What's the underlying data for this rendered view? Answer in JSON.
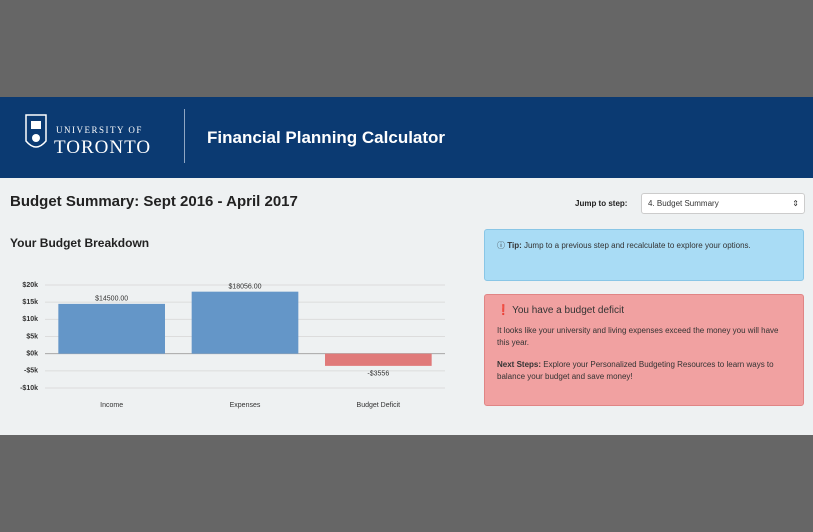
{
  "header": {
    "logo_top": "UNIVERSITY OF",
    "logo_bottom": "TORONTO",
    "app_title": "Financial Planning Calculator"
  },
  "page_title": "Budget Summary: Sept 2016 - April 2017",
  "jump": {
    "label": "Jump to step:",
    "selected": "4. Budget Summary"
  },
  "section_title": "Your Budget Breakdown",
  "tip": {
    "label": "Tip:",
    "text": "Jump to a previous step and recalculate to explore your options."
  },
  "alert": {
    "title": "You have a budget deficit",
    "body": "It looks like your university and living expenses exceed the money you will have this year.",
    "next_label": "Next Steps:",
    "next_text": "Explore your Personalized Budgeting Resources to learn ways to balance your budget and save money!"
  },
  "chart_data": {
    "type": "bar",
    "categories": [
      "Income",
      "Expenses",
      "Budget Deficit"
    ],
    "values": [
      14500,
      18056,
      -3556
    ],
    "value_labels": [
      "$14500.00",
      "$18056.00",
      "-$3556"
    ],
    "colors": [
      "#6496c8",
      "#6496c8",
      "#e07a7a"
    ],
    "ylim": [
      -10000,
      20000
    ],
    "yticks": [
      {
        "value": 20000,
        "label": "$20k"
      },
      {
        "value": 15000,
        "label": "$15k"
      },
      {
        "value": 10000,
        "label": "$10k"
      },
      {
        "value": 5000,
        "label": "$5k"
      },
      {
        "value": 0,
        "label": "$0k"
      },
      {
        "value": -5000,
        "label": "-$5k"
      },
      {
        "value": -10000,
        "label": "-$10k"
      }
    ],
    "grid": true
  }
}
